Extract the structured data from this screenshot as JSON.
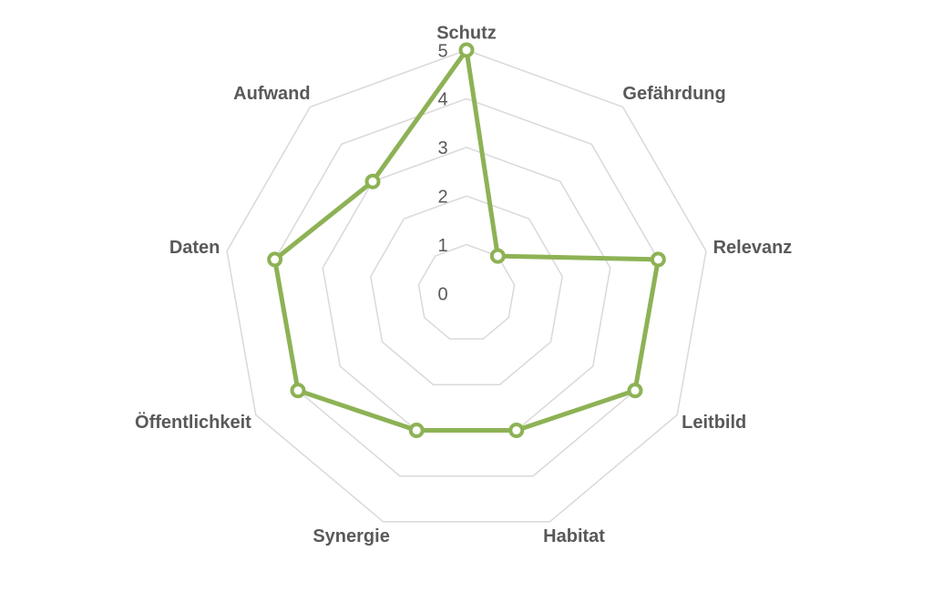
{
  "chart_data": {
    "type": "radar",
    "categories": [
      "Schutz",
      "Gefährdung",
      "Relevanz",
      "Leitbild",
      "Habitat",
      "Synergie",
      "Öffentlichkeit",
      "Daten",
      "Aufwand"
    ],
    "values": [
      5,
      1,
      4,
      4,
      3,
      3,
      4,
      4,
      3
    ],
    "color": "#8db255",
    "ylim": [
      0,
      5
    ],
    "yticks": [
      0,
      1,
      2,
      3,
      4,
      5
    ],
    "grid": true
  }
}
